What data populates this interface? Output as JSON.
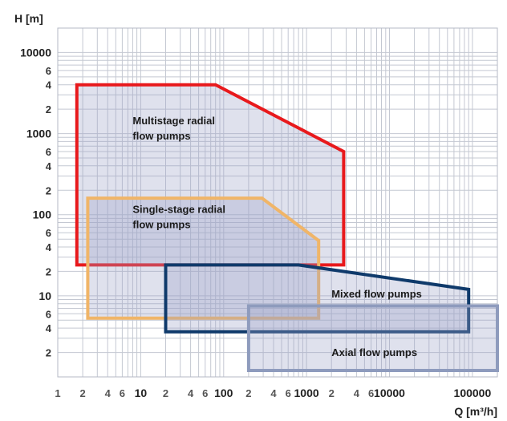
{
  "chart_data": {
    "type": "area",
    "title": "",
    "xlabel": "Q [m³/h]",
    "ylabel": "H [m]",
    "x_scale": "log",
    "y_scale": "log",
    "xlim": [
      1,
      200000
    ],
    "ylim": [
      1,
      20000
    ],
    "grid": true,
    "x_ticks": [
      {
        "v": 1,
        "t": "1",
        "major": false
      },
      {
        "v": 2,
        "t": "2",
        "major": false
      },
      {
        "v": 4,
        "t": "4",
        "major": false
      },
      {
        "v": 6,
        "t": "6",
        "major": false
      },
      {
        "v": 10,
        "t": "10",
        "major": true
      },
      {
        "v": 20,
        "t": "2",
        "major": false
      },
      {
        "v": 40,
        "t": "4",
        "major": false
      },
      {
        "v": 60,
        "t": "6",
        "major": false
      },
      {
        "v": 100,
        "t": "100",
        "major": true
      },
      {
        "v": 200,
        "t": "2",
        "major": false
      },
      {
        "v": 400,
        "t": "4",
        "major": false
      },
      {
        "v": 600,
        "t": "6",
        "major": false
      },
      {
        "v": 1000,
        "t": "1000",
        "major": true
      },
      {
        "v": 2000,
        "t": "2",
        "major": false
      },
      {
        "v": 4000,
        "t": "4",
        "major": false
      },
      {
        "v": 6000,
        "t": "6",
        "major": false
      },
      {
        "v": 10000,
        "t": "10000",
        "major": true
      },
      {
        "v": 100000,
        "t": "100000",
        "major": true
      }
    ],
    "y_ticks": [
      {
        "v": 2,
        "t": "2",
        "major": false
      },
      {
        "v": 4,
        "t": "4",
        "major": false
      },
      {
        "v": 6,
        "t": "6",
        "major": false
      },
      {
        "v": 10,
        "t": "10",
        "major": true
      },
      {
        "v": 20,
        "t": "2",
        "major": false
      },
      {
        "v": 40,
        "t": "4",
        "major": false
      },
      {
        "v": 60,
        "t": "6",
        "major": false
      },
      {
        "v": 100,
        "t": "100",
        "major": true
      },
      {
        "v": 200,
        "t": "2",
        "major": false
      },
      {
        "v": 400,
        "t": "4",
        "major": false
      },
      {
        "v": 600,
        "t": "6",
        "major": false
      },
      {
        "v": 1000,
        "t": "1000",
        "major": true
      },
      {
        "v": 2000,
        "t": "2",
        "major": false
      },
      {
        "v": 4000,
        "t": "4",
        "major": false
      },
      {
        "v": 6000,
        "t": "6",
        "major": false
      },
      {
        "v": 10000,
        "t": "10000",
        "major": true
      }
    ],
    "regions": [
      {
        "name": "Multistage radial flow pumps",
        "label_lines": [
          "Multistage radial",
          "flow pumps"
        ],
        "label_at": [
          8,
          1300
        ],
        "color": "#e8191c",
        "points": [
          [
            1.7,
            4000
          ],
          [
            80,
            4000
          ],
          [
            2800,
            600
          ],
          [
            2800,
            24
          ],
          [
            1.7,
            24
          ]
        ]
      },
      {
        "name": "Single-stage radial flow pumps",
        "label_lines": [
          "Single-stage radial",
          "flow pumps"
        ],
        "label_at": [
          8,
          105
        ],
        "color": "#f0b568",
        "points": [
          [
            2.3,
            160
          ],
          [
            290,
            160
          ],
          [
            1400,
            48
          ],
          [
            1400,
            5.3
          ],
          [
            2.3,
            5.3
          ]
        ]
      },
      {
        "name": "Mixed flow pumps",
        "label_lines": [
          "Mixed flow pumps"
        ],
        "label_at": [
          2000,
          9.5
        ],
        "color": "#0f3a6b",
        "points": [
          [
            20,
            24
          ],
          [
            800,
            24
          ],
          [
            90000,
            12
          ],
          [
            90000,
            3.6
          ],
          [
            20,
            3.6
          ]
        ]
      },
      {
        "name": "Axial flow pumps",
        "label_lines": [
          "Axial flow pumps"
        ],
        "label_at": [
          2000,
          1.8
        ],
        "color": "#8e9bbd",
        "points": [
          [
            200,
            7.5
          ],
          [
            200000,
            7.5
          ],
          [
            200000,
            1.2
          ],
          [
            200,
            1.2
          ]
        ]
      }
    ]
  }
}
